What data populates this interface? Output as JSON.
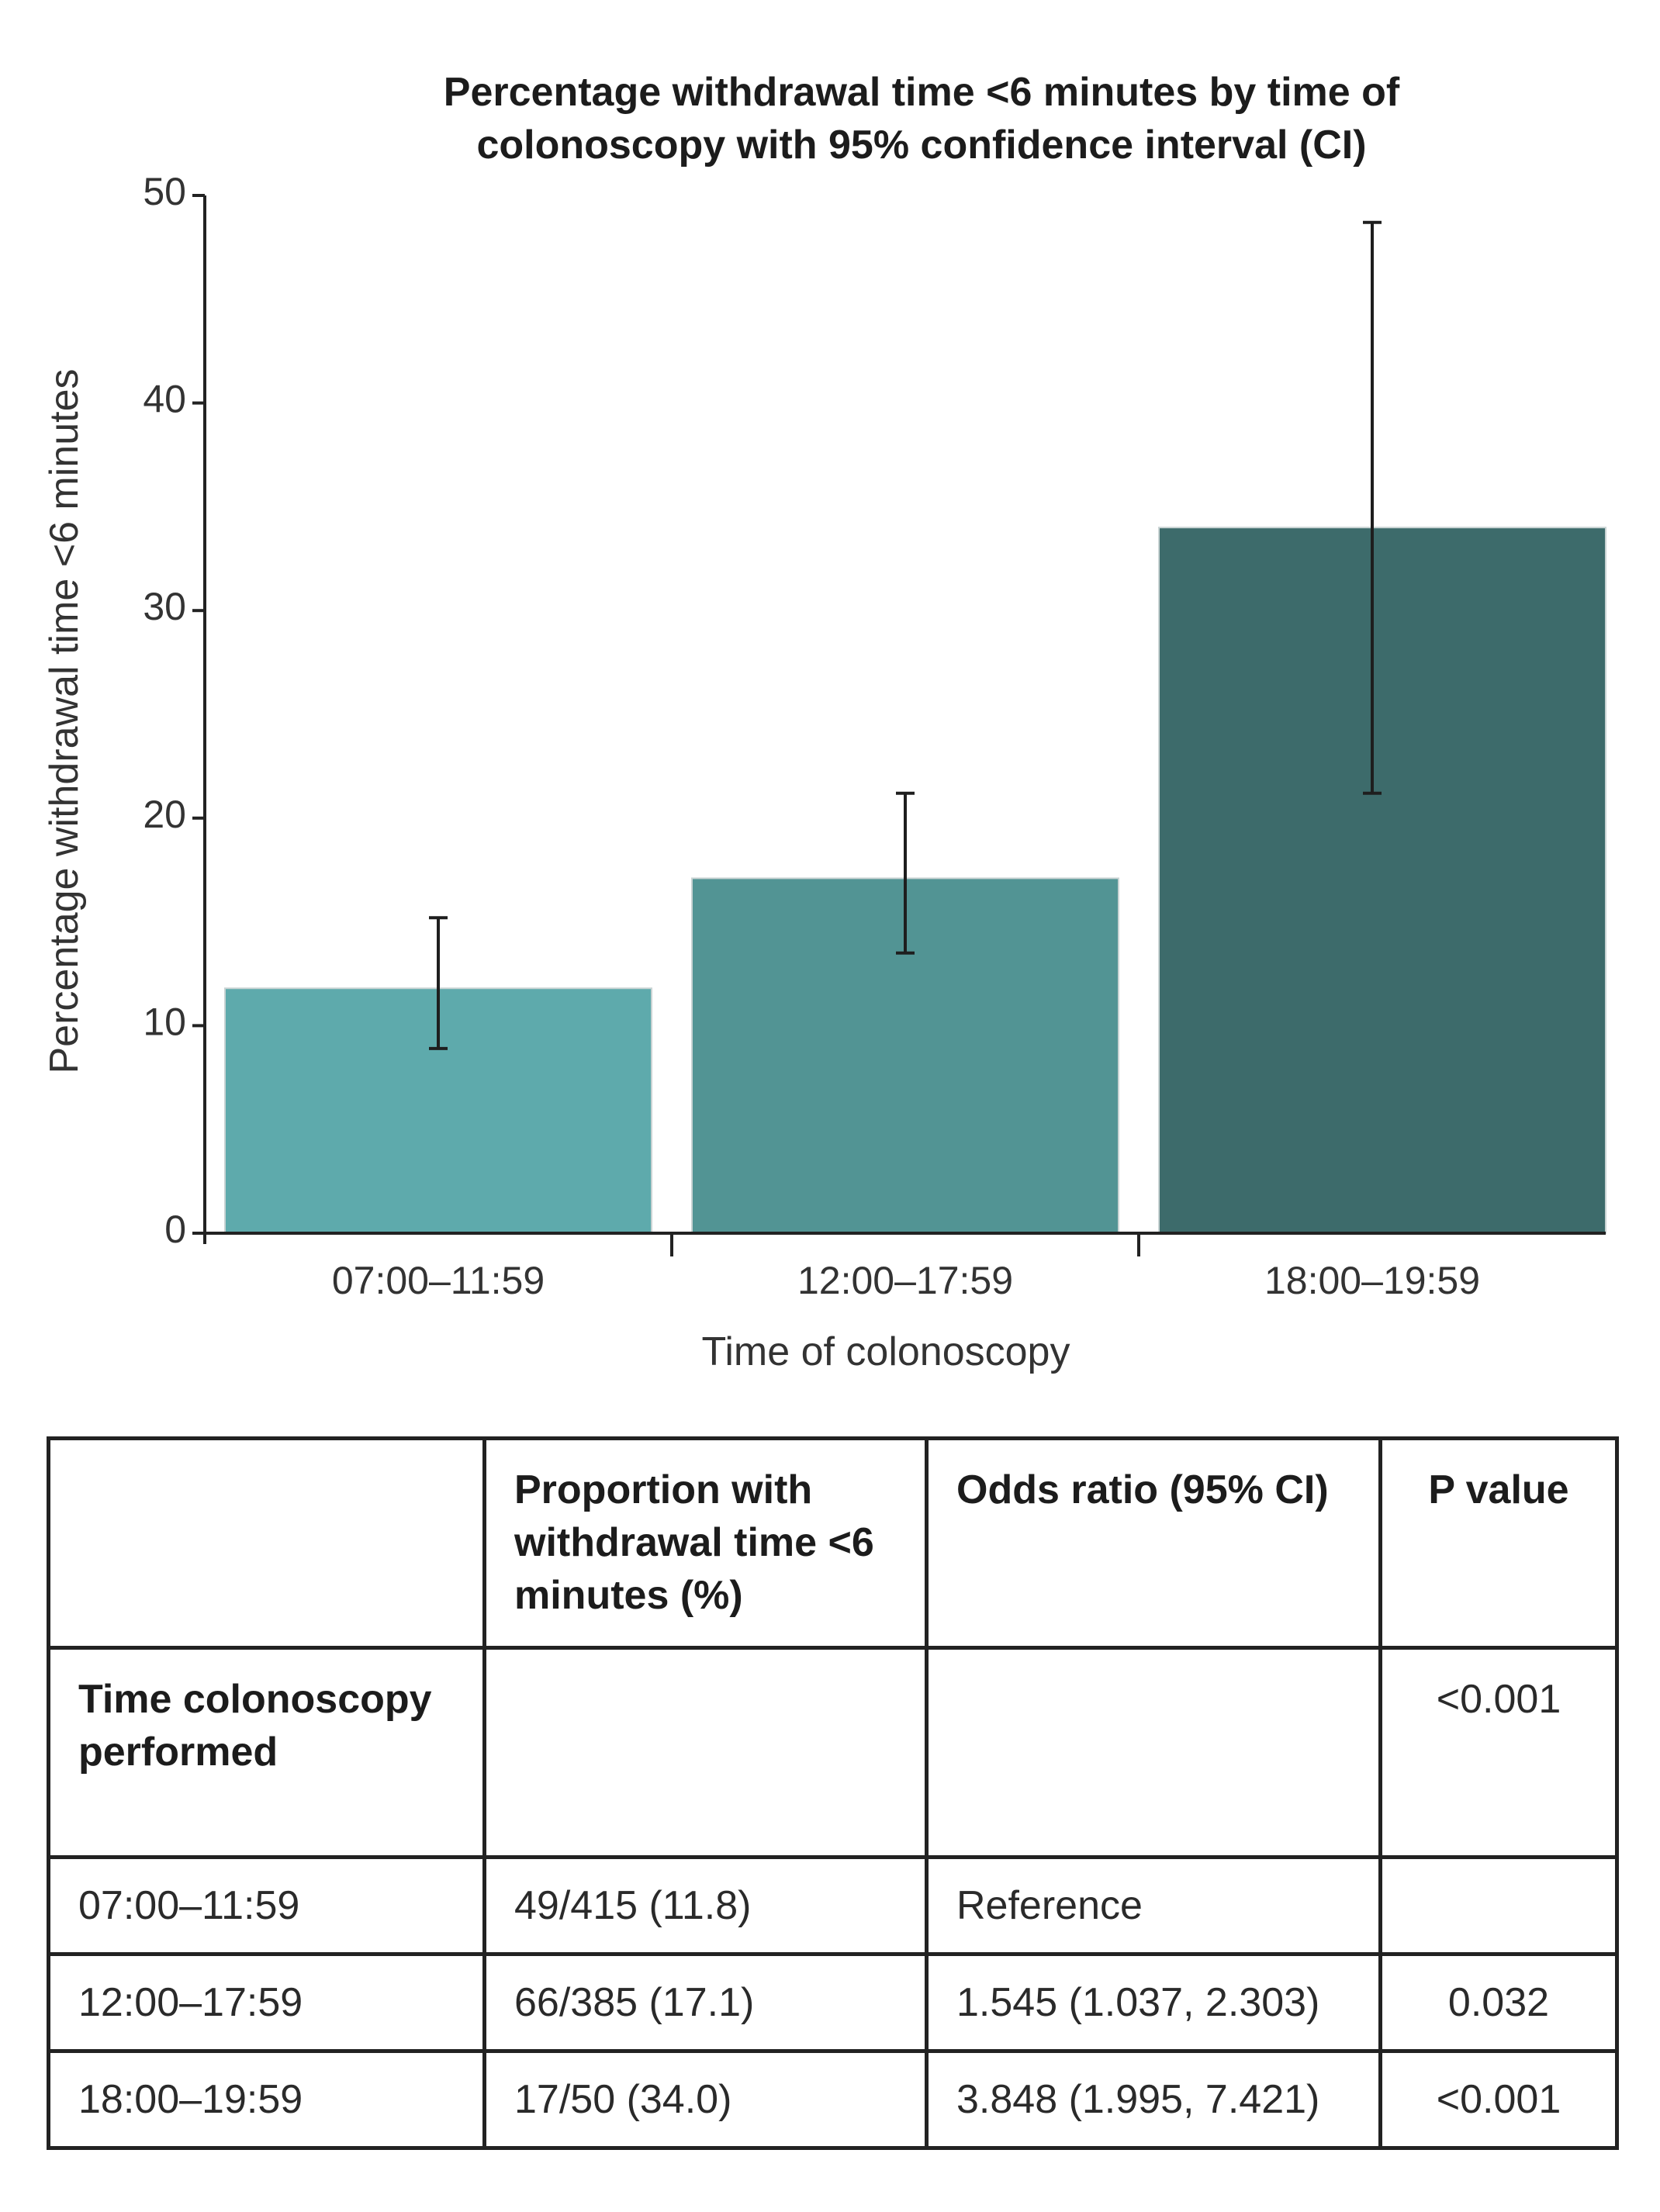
{
  "chart_data": {
    "type": "bar",
    "title": [
      "Percentage withdrawal time <6 minutes by time of",
      "colonoscopy with 95% confidence interval (CI)"
    ],
    "xlabel": "Time of colonoscopy",
    "ylabel": "Percentage withdrawal time <6 minutes",
    "categories": [
      "07:00–11:59",
      "12:00–17:59",
      "18:00–19:59"
    ],
    "values": [
      11.8,
      17.1,
      34.0
    ],
    "ci_lower": [
      8.9,
      13.5,
      21.2
    ],
    "ci_upper": [
      15.2,
      21.2,
      48.7
    ],
    "bar_colors": [
      "#5eaaac",
      "#529494",
      "#3d6b6b"
    ],
    "ylim": [
      0,
      50
    ],
    "yticks": [
      0,
      10,
      20,
      30,
      40,
      50
    ],
    "grid": false,
    "legend": "none"
  },
  "table": {
    "headers": [
      "",
      "Proportion with withdrawal time <6 minutes (%)",
      "Odds ratio (95% CI)",
      "P value"
    ],
    "group_row": {
      "label": "Time colonoscopy performed",
      "p_value": "<0.001"
    },
    "rows": [
      {
        "time": "07:00–11:59",
        "proportion": "49/415 (11.8)",
        "odds_ratio": "Reference",
        "p_value": ""
      },
      {
        "time": "12:00–17:59",
        "proportion": "66/385 (17.1)",
        "odds_ratio": "1.545 (1.037, 2.303)",
        "p_value": "0.032"
      },
      {
        "time": "18:00–19:59",
        "proportion": "17/50 (34.0)",
        "odds_ratio": "3.848 (1.995, 7.421)",
        "p_value": "<0.001"
      }
    ]
  }
}
